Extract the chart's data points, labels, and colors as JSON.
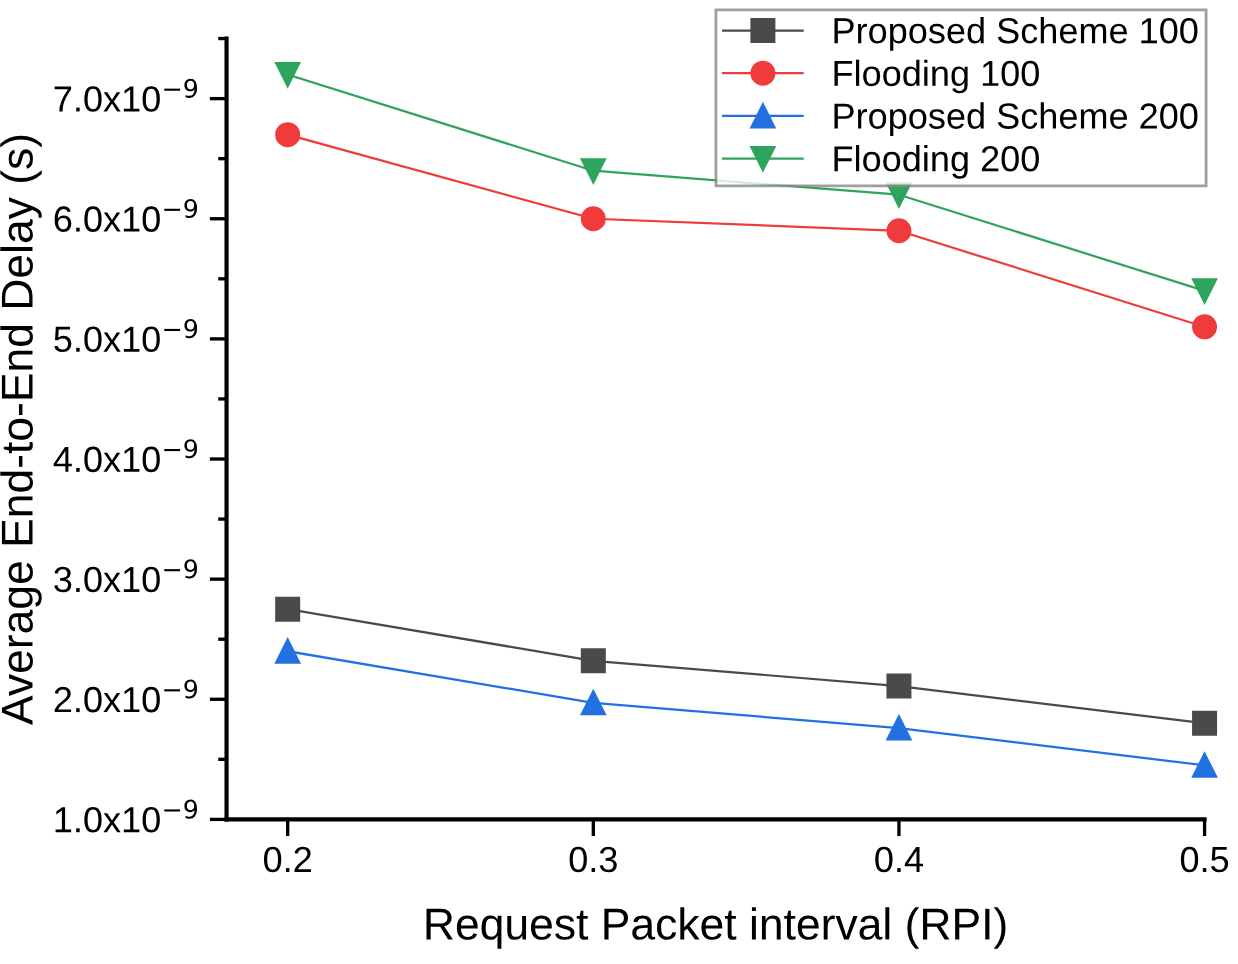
{
  "chart_data": {
    "type": "line",
    "xlabel": "Request Packet interval (RPI)",
    "ylabel": "Average End-to-End Delay (s)",
    "x": [
      0.2,
      0.3,
      0.4,
      0.5
    ],
    "series": [
      {
        "name": "Proposed Scheme 100",
        "color": "#4a4a4a",
        "marker": "square",
        "values": [
          2.75e-09,
          2.32e-09,
          2.11e-09,
          1.8e-09
        ]
      },
      {
        "name": "Flooding 100",
        "color": "#ef3b3b",
        "marker": "circle",
        "values": [
          6.7e-09,
          6e-09,
          5.9e-09,
          5.1e-09
        ]
      },
      {
        "name": "Proposed Scheme 200",
        "color": "#2370e0",
        "marker": "triangle",
        "values": [
          2.4e-09,
          1.97e-09,
          1.76e-09,
          1.45e-09
        ]
      },
      {
        "name": "Flooding 200",
        "color": "#2ea45c",
        "marker": "triangle_down",
        "values": [
          7.2e-09,
          6.4e-09,
          6.2e-09,
          5.4e-09
        ]
      }
    ],
    "xlim": [
      0.18,
      0.5
    ],
    "xticks": [
      0.2,
      0.3,
      0.4,
      0.5
    ],
    "ylim": [
      1e-09,
      7.5e-09
    ],
    "yticks": [
      {
        "value": 1e-09,
        "label": "1.0x10$^{−9}$"
      },
      {
        "value": 2e-09,
        "label": "2.0x10$^{−9}$"
      },
      {
        "value": 3e-09,
        "label": "3.0x10$^{−9}$"
      },
      {
        "value": 4e-09,
        "label": "4.0x10$^{−9}$"
      },
      {
        "value": 5e-09,
        "label": "5.0x10$^{−9}$"
      },
      {
        "value": 6e-09,
        "label": "6.0x10$^{−9}$"
      },
      {
        "value": 7e-09,
        "label": "7.0x10$^{−9}$"
      }
    ],
    "grid": false,
    "legend": "top right",
    "line_style": "solid"
  }
}
